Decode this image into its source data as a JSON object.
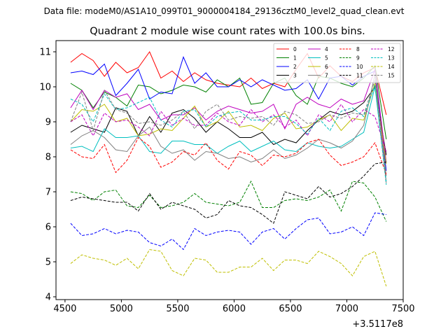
{
  "header_text": "Data file: modeM0/AS1A10_099T01_9000004184_29136cztM0_level2_quad_clean.evt",
  "chart_data": {
    "type": "line",
    "title": "Quadrant 2 module wise count rates with 100.0s bins.",
    "xlabel": "",
    "ylabel": "",
    "x_offset_label": "+3.5117e8",
    "xlim": [
      4420,
      7500
    ],
    "ylim": [
      3.92,
      11.32
    ],
    "xticks": [
      4500,
      5000,
      5500,
      6000,
      6500,
      7000,
      7500
    ],
    "yticks": [
      4,
      5,
      6,
      7,
      8,
      9,
      10,
      11
    ],
    "grid": false,
    "legend_position": "top-right",
    "x": [
      4550,
      4650,
      4750,
      4850,
      4950,
      5050,
      5150,
      5250,
      5350,
      5450,
      5550,
      5650,
      5750,
      5850,
      5950,
      6050,
      6150,
      6250,
      6350,
      6450,
      6550,
      6650,
      6750,
      6850,
      6950,
      7050,
      7150,
      7250,
      7350
    ],
    "series": [
      {
        "name": "0",
        "color": "#ff0000",
        "dash": "solid",
        "values": [
          10.7,
          10.95,
          10.75,
          10.3,
          10.7,
          10.4,
          10.55,
          11.0,
          10.25,
          10.45,
          10.15,
          10.4,
          10.2,
          10.1,
          10.05,
          10.0,
          10.25,
          9.95,
          10.1,
          10.0,
          10.5,
          10.95,
          10.25,
          10.6,
          10.3,
          10.15,
          10.4,
          10.55,
          9.2
        ]
      },
      {
        "name": "1",
        "color": "#008000",
        "dash": "solid",
        "values": [
          10.1,
          9.9,
          9.4,
          9.85,
          9.7,
          9.45,
          10.05,
          10.0,
          9.8,
          9.9,
          10.05,
          10.0,
          9.85,
          10.2,
          10.0,
          10.25,
          9.5,
          9.55,
          10.1,
          10.25,
          9.75,
          9.5,
          10.3,
          10.25,
          10.1,
          10.0,
          10.25,
          10.6,
          8.5
        ]
      },
      {
        "name": "2",
        "color": "#0000ff",
        "dash": "solid",
        "values": [
          10.4,
          10.45,
          10.35,
          10.65,
          9.75,
          10.1,
          10.5,
          9.65,
          9.85,
          9.8,
          10.85,
          10.1,
          10.4,
          10.0,
          10.0,
          10.2,
          10.0,
          10.2,
          10.05,
          9.9,
          9.95,
          10.2,
          9.65,
          10.25,
          10.3,
          10.05,
          10.3,
          10.45,
          7.6
        ]
      },
      {
        "name": "3",
        "color": "#000000",
        "dash": "solid",
        "values": [
          8.7,
          8.9,
          8.8,
          8.7,
          9.4,
          9.3,
          8.6,
          9.15,
          8.7,
          9.25,
          9.35,
          9.1,
          8.7,
          9.0,
          8.8,
          8.55,
          8.55,
          8.7,
          8.35,
          8.5,
          8.4,
          8.75,
          9.05,
          9.3,
          9.2,
          9.3,
          9.55,
          10.0,
          8.05
        ]
      },
      {
        "name": "4",
        "color": "#bf00bf",
        "dash": "solid",
        "values": [
          9.4,
          9.9,
          9.35,
          9.9,
          9.7,
          9.8,
          9.35,
          9.5,
          9.05,
          9.2,
          9.2,
          9.4,
          9.05,
          9.3,
          9.45,
          9.35,
          9.25,
          9.3,
          9.5,
          8.8,
          9.5,
          9.7,
          9.5,
          9.4,
          9.65,
          9.5,
          9.6,
          10.5,
          7.85
        ]
      },
      {
        "name": "5",
        "color": "#00bfbf",
        "dash": "solid",
        "values": [
          8.25,
          8.3,
          8.15,
          8.8,
          8.55,
          8.55,
          8.6,
          8.15,
          8.1,
          8.45,
          8.45,
          8.35,
          8.35,
          8.1,
          8.3,
          8.45,
          8.15,
          8.3,
          8.45,
          8.2,
          8.15,
          8.4,
          8.3,
          8.25,
          8.3,
          8.5,
          8.7,
          10.0,
          7.3
        ]
      },
      {
        "name": "6",
        "color": "#bfbf00",
        "dash": "solid",
        "values": [
          9.0,
          9.35,
          9.3,
          9.5,
          9.0,
          9.1,
          8.6,
          8.65,
          8.8,
          8.75,
          9.1,
          9.45,
          8.85,
          9.0,
          9.3,
          8.85,
          8.9,
          8.75,
          9.1,
          9.25,
          8.8,
          8.85,
          9.05,
          9.2,
          8.75,
          9.1,
          9.05,
          10.1,
          7.8
        ]
      },
      {
        "name": "7",
        "color": "#808080",
        "dash": "solid",
        "values": [
          8.35,
          8.6,
          8.75,
          8.55,
          8.2,
          8.15,
          8.6,
          8.85,
          8.3,
          8.1,
          8.2,
          7.9,
          8.15,
          8.1,
          7.95,
          8.0,
          7.85,
          7.95,
          8.2,
          7.95,
          8.05,
          8.25,
          8.5,
          8.4,
          8.25,
          8.45,
          8.9,
          10.35,
          7.45
        ]
      },
      {
        "name": "8",
        "color": "#ff0000",
        "dash": "dashed",
        "values": [
          8.2,
          8.0,
          7.95,
          8.35,
          7.55,
          7.9,
          8.55,
          8.3,
          7.7,
          7.85,
          8.15,
          8.05,
          8.4,
          7.9,
          7.65,
          8.15,
          8.05,
          7.75,
          8.05,
          8.0,
          8.1,
          8.4,
          8.5,
          8.05,
          7.75,
          7.85,
          8.0,
          8.4,
          7.5
        ]
      },
      {
        "name": "9",
        "color": "#008000",
        "dash": "dashed",
        "values": [
          7.0,
          6.95,
          6.75,
          7.0,
          7.05,
          6.6,
          6.55,
          6.9,
          6.55,
          6.6,
          6.7,
          6.95,
          6.7,
          6.65,
          6.6,
          6.7,
          7.3,
          6.55,
          6.55,
          6.75,
          6.8,
          6.75,
          6.85,
          7.05,
          6.45,
          7.3,
          7.25,
          6.85,
          6.15
        ]
      },
      {
        "name": "10",
        "color": "#0000ff",
        "dash": "dashed",
        "values": [
          6.1,
          5.75,
          5.8,
          5.95,
          5.8,
          5.9,
          5.85,
          5.55,
          5.45,
          5.65,
          5.35,
          5.95,
          5.75,
          5.85,
          5.9,
          5.85,
          5.5,
          5.85,
          5.95,
          5.65,
          5.95,
          6.2,
          6.25,
          5.8,
          5.85,
          6.0,
          5.75,
          6.4,
          6.35
        ]
      },
      {
        "name": "11",
        "color": "#000000",
        "dash": "dashed",
        "values": [
          6.75,
          6.85,
          6.8,
          6.75,
          6.7,
          6.7,
          6.45,
          6.95,
          6.5,
          6.7,
          6.6,
          6.5,
          6.25,
          6.35,
          6.75,
          6.6,
          6.55,
          6.35,
          6.1,
          7.0,
          6.9,
          6.8,
          7.15,
          6.85,
          6.95,
          7.15,
          7.45,
          7.8,
          7.85
        ]
      },
      {
        "name": "12",
        "color": "#bf00bf",
        "dash": "dashed",
        "values": [
          9.0,
          9.2,
          8.6,
          9.25,
          9.0,
          9.05,
          8.85,
          8.6,
          9.3,
          8.9,
          9.1,
          8.9,
          8.9,
          9.25,
          9.0,
          8.9,
          9.35,
          9.0,
          9.2,
          8.85,
          9.05,
          8.6,
          9.2,
          9.0,
          9.5,
          9.0,
          9.35,
          9.15,
          8.15
        ]
      },
      {
        "name": "13",
        "color": "#00bfbf",
        "dash": "dashed",
        "values": [
          9.65,
          9.5,
          9.0,
          9.8,
          9.35,
          9.4,
          9.55,
          9.7,
          9.05,
          8.85,
          9.3,
          9.35,
          8.85,
          9.15,
          9.25,
          9.3,
          9.05,
          9.05,
          9.15,
          9.15,
          8.95,
          8.65,
          9.1,
          8.75,
          9.3,
          9.4,
          9.15,
          10.05,
          7.2
        ]
      },
      {
        "name": "14",
        "color": "#bfbf00",
        "dash": "dashed",
        "values": [
          4.95,
          5.2,
          5.1,
          5.05,
          4.9,
          5.1,
          4.8,
          5.35,
          5.3,
          4.75,
          4.6,
          5.1,
          5.05,
          4.7,
          4.7,
          4.85,
          4.85,
          5.1,
          4.75,
          5.05,
          5.05,
          4.95,
          5.3,
          5.15,
          4.95,
          4.6,
          5.15,
          5.3,
          4.3
        ]
      },
      {
        "name": "15",
        "color": "#808080",
        "dash": "dashed",
        "values": [
          9.0,
          9.85,
          8.75,
          9.9,
          9.35,
          9.25,
          8.95,
          9.0,
          8.9,
          9.05,
          9.3,
          8.8,
          9.3,
          9.5,
          9.05,
          9.15,
          9.1,
          9.15,
          8.9,
          9.3,
          9.2,
          8.95,
          9.0,
          9.2,
          9.1,
          9.25,
          9.2,
          10.2,
          7.25
        ]
      }
    ]
  }
}
